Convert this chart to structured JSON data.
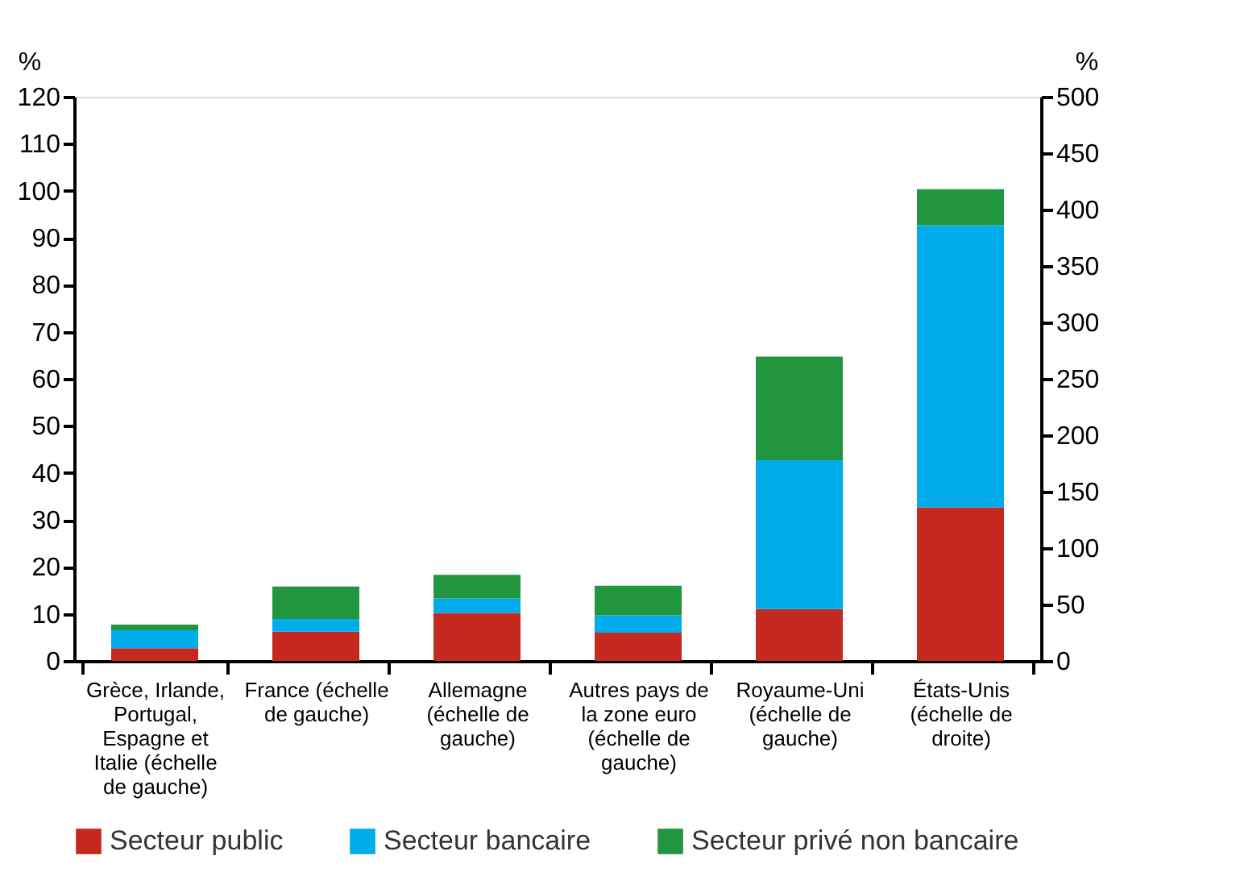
{
  "chart_data": {
    "type": "bar",
    "stacked": true,
    "categories": [
      "Grèce, Irlande, Portugal, Espagne et Italie (échelle de gauche)",
      "France (échelle de gauche)",
      "Allemagne (échelle de gauche)",
      "Autres pays de la zone euro (échelle de gauche)",
      "Royaume-Uni (échelle de gauche)",
      "États-Unis (échelle de droite)"
    ],
    "ylabel": "%",
    "y2label": "%",
    "ylim": [
      0,
      120
    ],
    "yticks": [
      0,
      10,
      20,
      30,
      40,
      50,
      60,
      70,
      80,
      90,
      100,
      110,
      120
    ],
    "y2lim": [
      0,
      500
    ],
    "y2ticks": [
      0,
      50,
      100,
      150,
      200,
      250,
      300,
      350,
      400,
      450,
      500
    ],
    "series": [
      {
        "name": "Secteur public",
        "color": "#c4281f",
        "values": [
          2.7,
          6.2,
          10.2,
          6.0,
          11.0,
          null
        ]
      },
      {
        "name": "Secteur bancaire",
        "color": "#00adea",
        "values": [
          3.8,
          2.7,
          3.1,
          3.7,
          31.7,
          null
        ]
      },
      {
        "name": "Secteur privé non bancaire",
        "color": "#22963f",
        "values": [
          1.2,
          6.9,
          5.0,
          6.3,
          22.0,
          null
        ]
      },
      {
        "color": "#c4281f",
        "axis": "y2",
        "values": [
          null,
          null,
          null,
          null,
          null,
          136
        ]
      },
      {
        "color": "#00adea",
        "axis": "y2",
        "values": [
          null,
          null,
          null,
          null,
          null,
          250
        ]
      },
      {
        "color": "#22963f",
        "axis": "y2",
        "values": [
          null,
          null,
          null,
          null,
          null,
          32
        ]
      }
    ],
    "legend": "bottom",
    "grid": false
  }
}
